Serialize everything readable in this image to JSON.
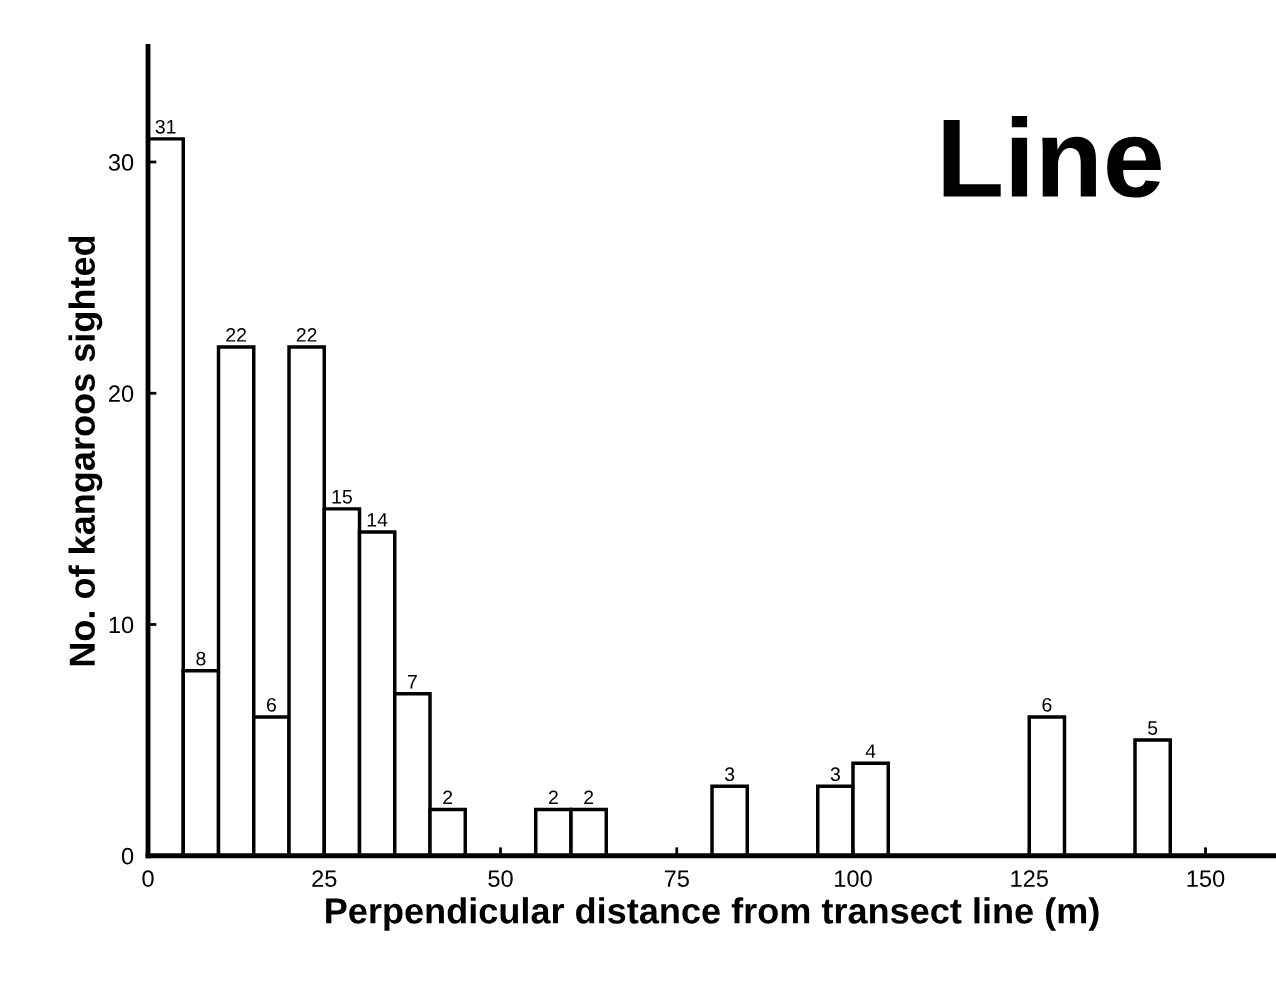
{
  "chart_data": {
    "type": "histogram",
    "title": "Line",
    "xlabel": "Perpendicular distance from transect line (m)",
    "ylabel": "No. of kangaroos sighted",
    "bins": [
      0,
      5,
      10,
      15,
      20,
      25,
      30,
      35,
      40,
      45,
      50,
      55,
      60,
      65,
      70,
      75,
      80,
      85,
      90,
      95,
      100,
      105,
      110,
      115,
      120,
      125,
      130,
      135,
      140,
      145
    ],
    "values": [
      31,
      8,
      22,
      6,
      22,
      15,
      14,
      7,
      2,
      0,
      0,
      2,
      2,
      0,
      0,
      0,
      3,
      0,
      0,
      3,
      4,
      0,
      0,
      0,
      0,
      6,
      0,
      0,
      5
    ],
    "value_labels": [
      "31",
      "8",
      "22",
      "6",
      "22",
      "15",
      "14",
      "7",
      "2",
      null,
      null,
      "2",
      "2",
      null,
      null,
      null,
      "3",
      null,
      null,
      "3",
      "4",
      null,
      null,
      null,
      null,
      "6",
      null,
      null,
      "5"
    ],
    "color": "#ffffff",
    "xlim": [
      0,
      160
    ],
    "ylim": [
      0,
      35
    ],
    "xticks": [
      0,
      25,
      50,
      75,
      100,
      125,
      150
    ],
    "yticks": [
      0,
      10,
      20,
      30
    ],
    "grid": false
  }
}
